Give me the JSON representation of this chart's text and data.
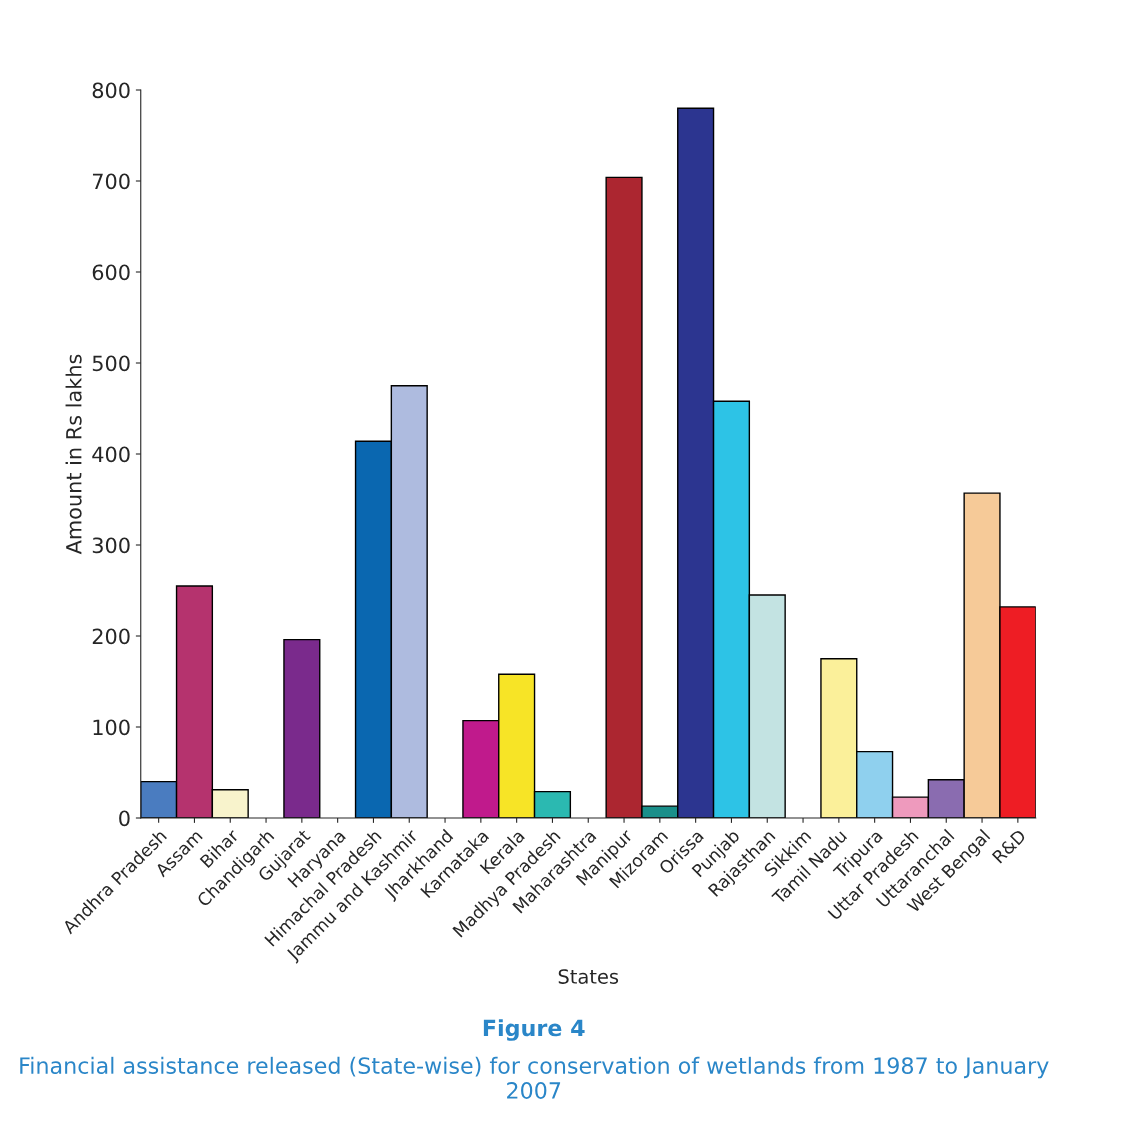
{
  "chart_data": {
    "type": "bar",
    "title": "Figure 4",
    "subtitle": "Financial assistance released (State-wise) for conservation of wetlands from 1987 to January 2007",
    "xlabel": "States",
    "ylabel": "Amount in Rs lakhs",
    "categories": [
      "Andhra Pradesh",
      "Assam",
      "Bihar",
      "Chandigarh",
      "Gujarat",
      "Haryana",
      "Himachal Pradesh",
      "Jammu and Kashmir",
      "Jharkhand",
      "Karnataka",
      "Kerala",
      "Madhya Pradesh",
      "Maharashtra",
      "Manipur",
      "Mizoram",
      "Orissa",
      "Punjab",
      "Rajasthan",
      "Sikkim",
      "Tamil Nadu",
      "Tripura",
      "Uttar Pradesh",
      "Uttaranchal",
      "West Bengal",
      "R&D"
    ],
    "values": [
      40,
      255,
      31,
      0,
      196,
      0,
      414,
      475,
      0,
      107,
      158,
      29,
      0,
      704,
      13,
      780,
      458,
      245,
      0,
      175,
      73,
      23,
      42,
      357,
      232
    ],
    "colors": [
      "#4a7cc0",
      "#b5336e",
      "#f8f3cc",
      null,
      "#7a2a8c",
      null,
      "#0a67b0",
      "#aebbdf",
      null,
      "#c01a8c",
      "#f7e426",
      "#2bb9b1",
      null,
      "#ac2630",
      "#1a8f8a",
      "#2c3590",
      "#2dc3e6",
      "#c3e3e2",
      null,
      "#fbf09a",
      "#8fd0ee",
      "#ee9abd",
      "#8a6cb0",
      "#f6ca98",
      "#ee1d24"
    ],
    "ylim": [
      0,
      800
    ],
    "yticks": [
      0,
      100,
      200,
      300,
      400,
      500,
      600,
      700,
      800
    ],
    "grid": false,
    "legend": false
  }
}
